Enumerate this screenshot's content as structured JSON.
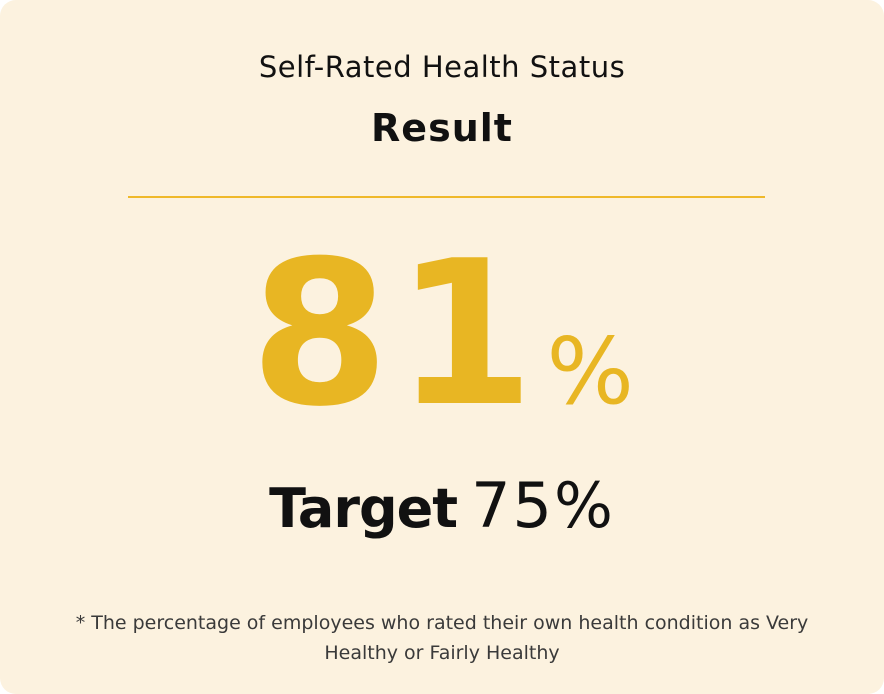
{
  "header": {
    "title": "Self-Rated Health Status",
    "subtitle": "Result"
  },
  "result": {
    "number": "81",
    "unit": "%"
  },
  "target": {
    "label": "Target",
    "value": "75%"
  },
  "footnote": "* The percentage of employees who rated their own health condition as Very Healthy or Fairly Healthy"
}
